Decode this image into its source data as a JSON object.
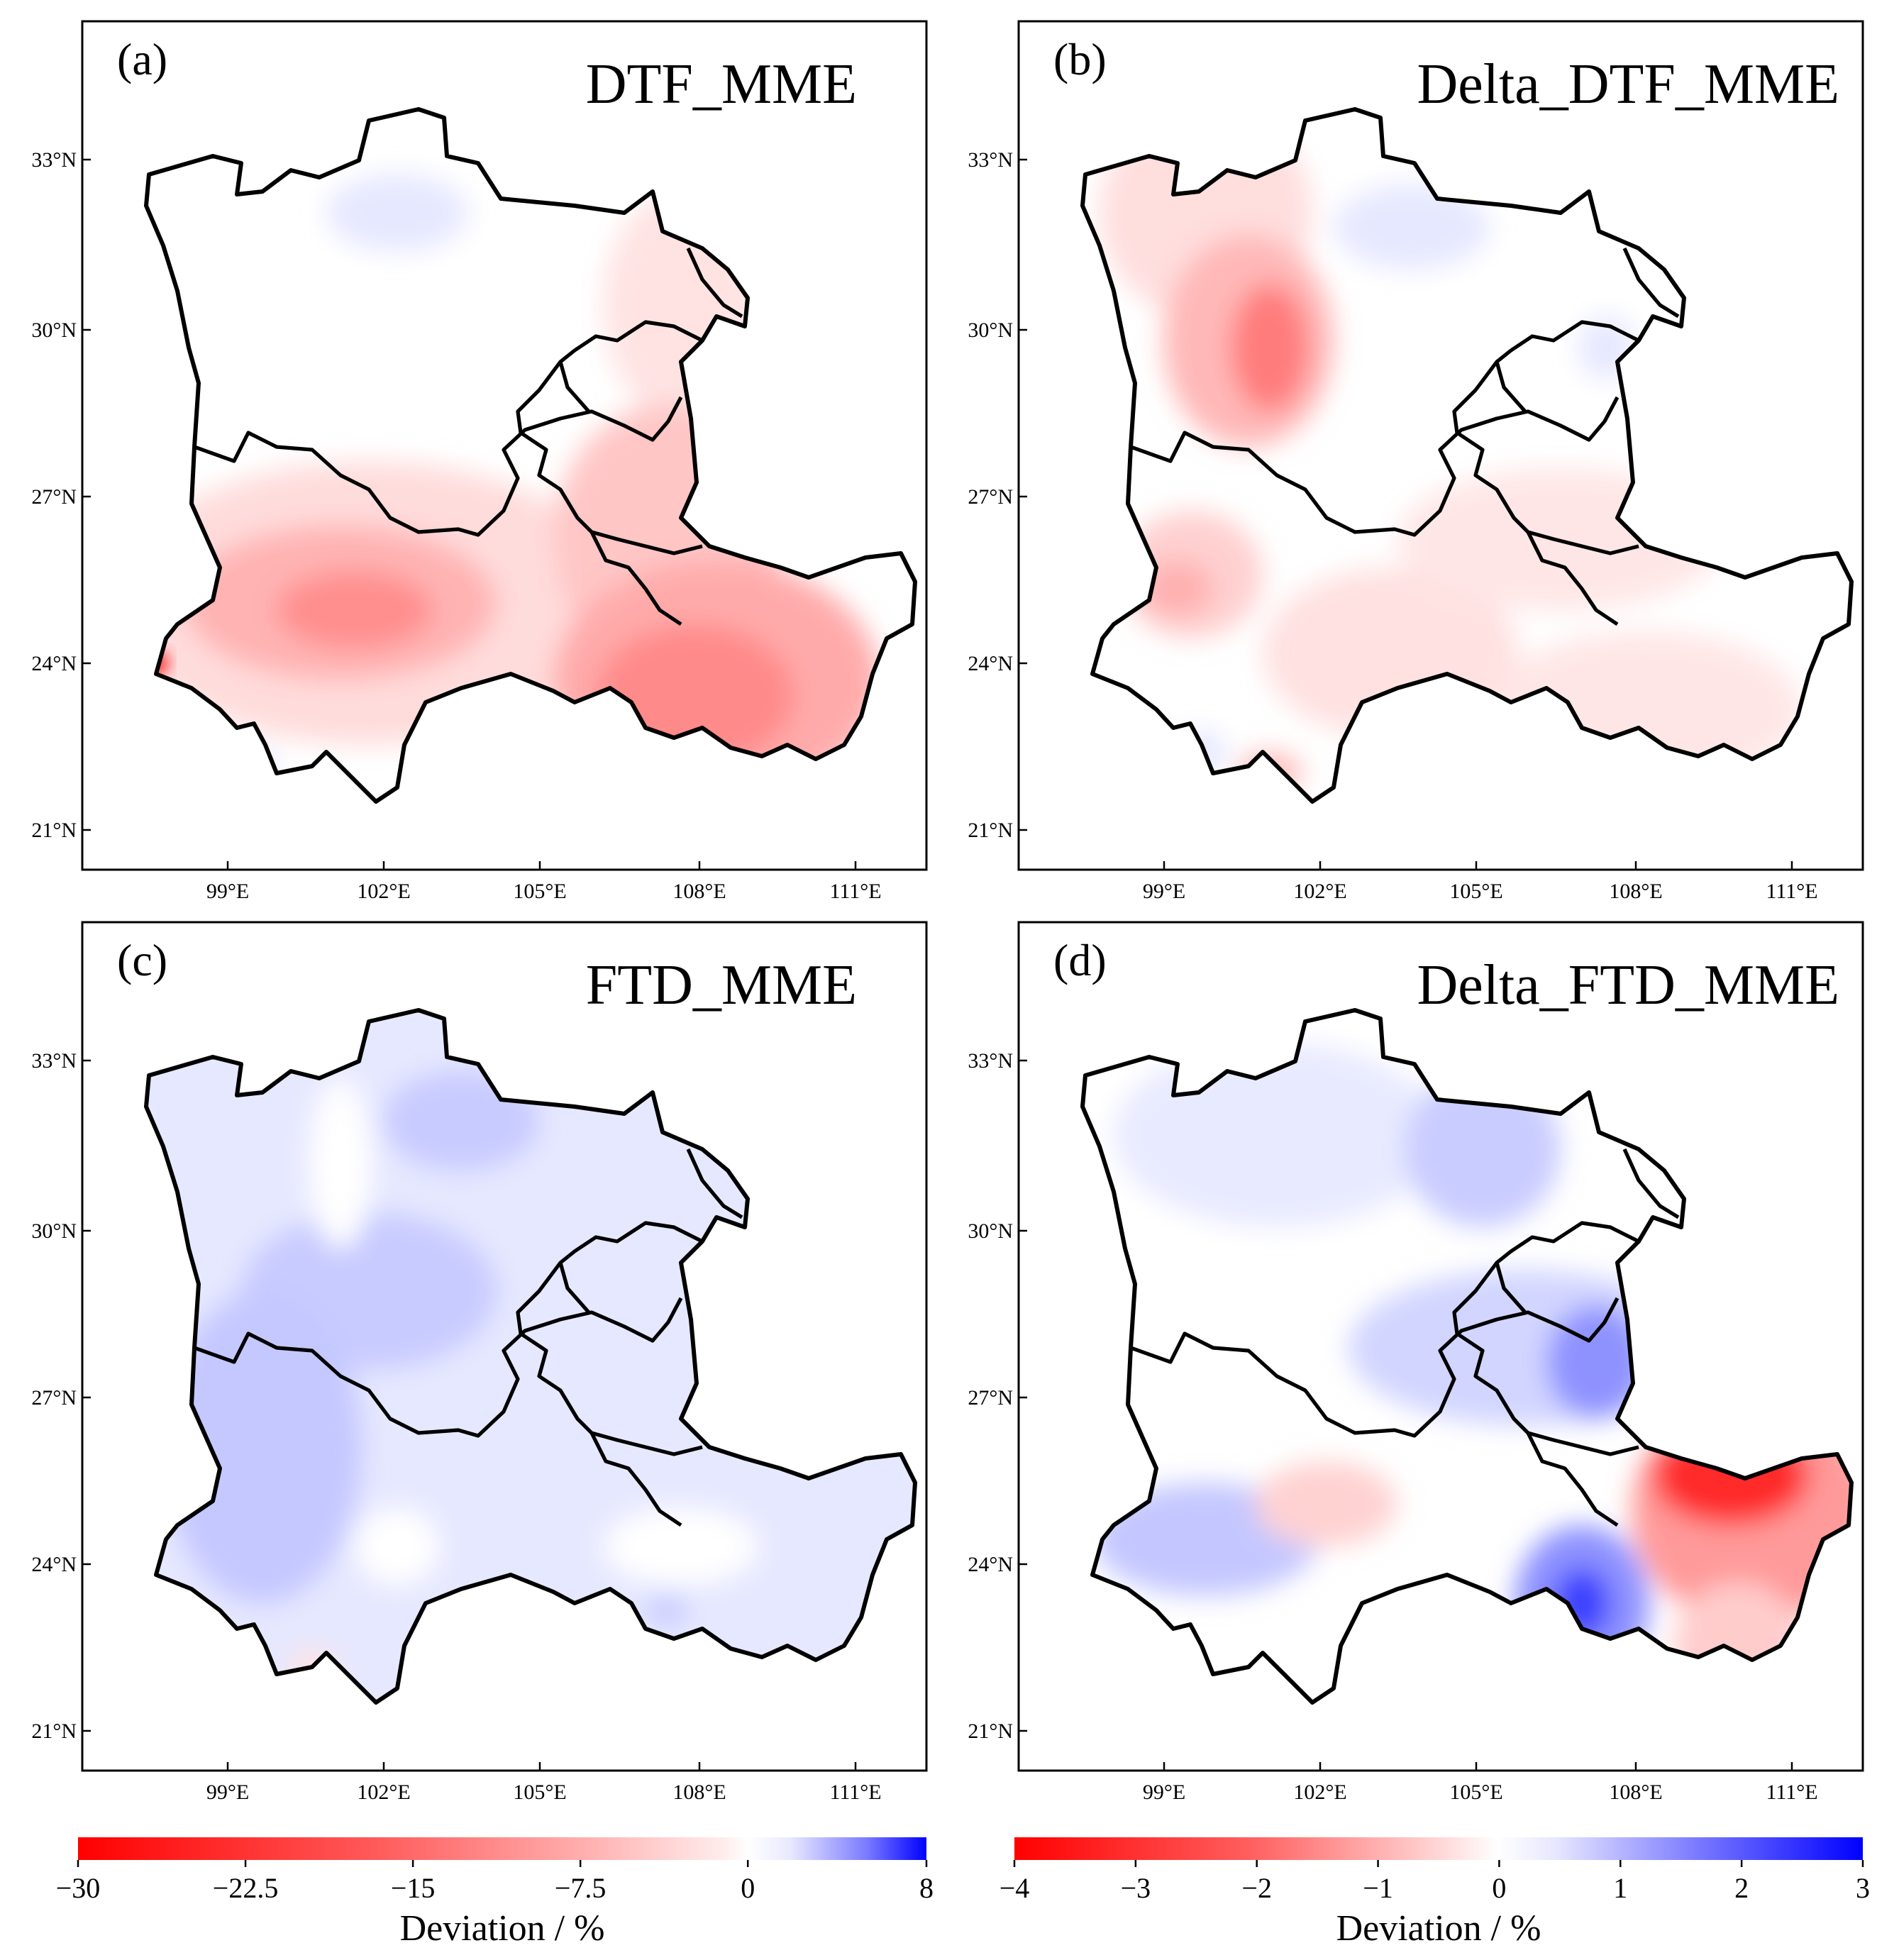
{
  "figure": {
    "panels": [
      {
        "id": "a",
        "label": "(a)",
        "title": "DTF_MME"
      },
      {
        "id": "b",
        "label": "(b)",
        "title": "Delta_DTF_MME"
      },
      {
        "id": "c",
        "label": "(c)",
        "title": "FTD_MME"
      },
      {
        "id": "d",
        "label": "(d)",
        "title": "Delta_FTD_MME"
      }
    ],
    "axes": {
      "lat_ticks": [
        "33°N",
        "30°N",
        "27°N",
        "24°N",
        "21°N"
      ],
      "lon_ticks": [
        "99°E",
        "102°E",
        "105°E",
        "108°E",
        "111°E"
      ]
    },
    "colorbars": [
      {
        "id": "left",
        "title": "Deviation / %",
        "tick_labels": [
          "−30",
          "−22.5",
          "−15",
          "−7.5",
          "0",
          "8"
        ],
        "min": -30,
        "max": 8
      },
      {
        "id": "right",
        "title": "Deviation / %",
        "tick_labels": [
          "−4",
          "−3",
          "−2",
          "−1",
          "0",
          "1",
          "2",
          "3"
        ],
        "min": -4,
        "max": 3
      }
    ],
    "colors": {
      "negative": "#ff0000",
      "neutral": "#ffffff",
      "positive": "#0000ff"
    }
  }
}
